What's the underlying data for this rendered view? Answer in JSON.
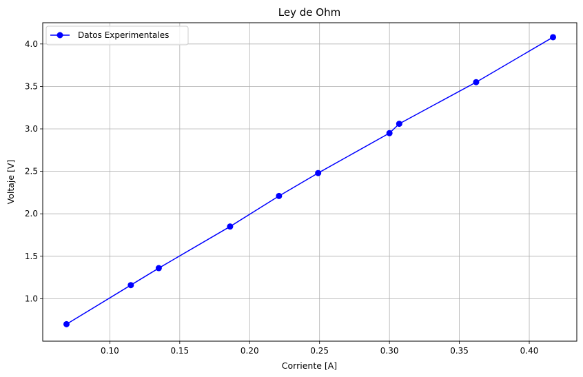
{
  "chart_data": {
    "type": "line",
    "title": "Ley de Ohm",
    "xlabel": "Corriente [A]",
    "ylabel": "Voltaje [V]",
    "xlim": [
      0.052,
      0.434
    ],
    "ylim": [
      0.5,
      4.25
    ],
    "x_ticks": [
      0.1,
      0.15,
      0.2,
      0.25,
      0.3,
      0.35,
      0.4
    ],
    "x_tick_labels": [
      "0.10",
      "0.15",
      "0.20",
      "0.25",
      "0.30",
      "0.35",
      "0.40"
    ],
    "y_ticks": [
      1.0,
      1.5,
      2.0,
      2.5,
      3.0,
      3.5,
      4.0
    ],
    "y_tick_labels": [
      "1.0",
      "1.5",
      "2.0",
      "2.5",
      "3.0",
      "3.5",
      "4.0"
    ],
    "grid": true,
    "legend_position": "top-left",
    "series": [
      {
        "name": "Datos Experimentales",
        "color": "#0000ff",
        "marker": "circle",
        "x": [
          0.069,
          0.115,
          0.135,
          0.186,
          0.221,
          0.249,
          0.3,
          0.307,
          0.362,
          0.417
        ],
        "y": [
          0.7,
          1.16,
          1.36,
          1.85,
          2.21,
          2.48,
          2.95,
          3.06,
          3.55,
          4.08
        ]
      }
    ]
  }
}
